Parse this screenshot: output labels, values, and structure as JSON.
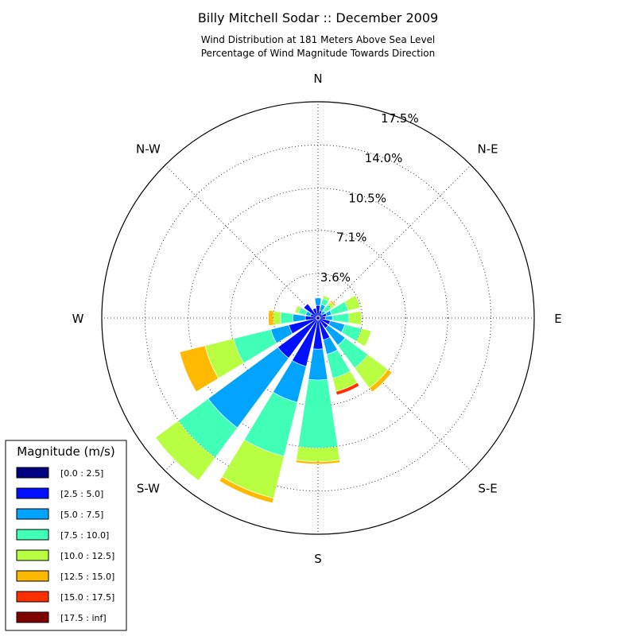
{
  "chart_data": {
    "type": "windrose",
    "title": "Billy Mitchell Sodar :: December 2009",
    "subtitle_lines": [
      "Wind Distribution at 181 Meters Above Sea Level",
      "Percentage of Wind Magnitude Towards Direction"
    ],
    "direction_labels": [
      "N",
      "N-E",
      "E",
      "S-E",
      "S",
      "S-W",
      "W",
      "N-W"
    ],
    "ring_labels": [
      "3.6%",
      "7.1%",
      "10.5%",
      "14.0%",
      "17.5%"
    ],
    "rmax": 17.5,
    "legend": {
      "title": "Magnitude (m/s)",
      "bins": [
        {
          "label": "[0.0 : 2.5]",
          "color": "#000080"
        },
        {
          "label": "[2.5 : 5.0]",
          "color": "#0010ff"
        },
        {
          "label": "[5.0 : 7.5]",
          "color": "#00a4ff"
        },
        {
          "label": "[7.5 : 10.0]",
          "color": "#40ffb7"
        },
        {
          "label": "[10.0 : 12.5]",
          "color": "#b7ff40"
        },
        {
          "label": "[12.5 : 15.0]",
          "color": "#ffb900"
        },
        {
          "label": "[15.0 : 17.5]",
          "color": "#ff3000"
        },
        {
          "label": "[17.5 : inf]",
          "color": "#800000"
        }
      ]
    },
    "direction_bins_deg": [
      0,
      22.5,
      45,
      67.5,
      90,
      112.5,
      135,
      157.5,
      180,
      202.5,
      225,
      247.5,
      270,
      292.5,
      315,
      337.5
    ],
    "cumulative_percent": [
      [
        0.15,
        1.0,
        1.6,
        1.6,
        1.6,
        1.6,
        1.6,
        1.6
      ],
      [
        0.15,
        0.6,
        1.1,
        1.6,
        1.85,
        1.85,
        1.85,
        1.85
      ],
      [
        0.15,
        0.4,
        0.7,
        1.3,
        1.6,
        1.75,
        1.75,
        1.75
      ],
      [
        0.15,
        0.7,
        1.1,
        2.5,
        3.5,
        3.5,
        3.5,
        3.5
      ],
      [
        0.15,
        0.6,
        1.15,
        2.5,
        3.5,
        3.5,
        3.5,
        3.5
      ],
      [
        0.15,
        1.0,
        2.2,
        3.6,
        4.4,
        4.4,
        4.4,
        4.4
      ],
      [
        0.15,
        1.0,
        2.7,
        5.0,
        7.0,
        7.4,
        7.4,
        7.4
      ],
      [
        0.15,
        1.8,
        3.0,
        5.0,
        6.1,
        6.1,
        6.4,
        6.4
      ],
      [
        0.15,
        2.5,
        5.0,
        10.5,
        11.6,
        11.8,
        11.8,
        11.8
      ],
      [
        0.15,
        4.0,
        7.0,
        11.5,
        15.0,
        15.4,
        15.4,
        15.4
      ],
      [
        0.15,
        4.0,
        11.0,
        14.0,
        16.3,
        16.3,
        16.3,
        16.3
      ],
      [
        0.15,
        2.4,
        3.9,
        7.0,
        9.4,
        11.5,
        11.5,
        11.5
      ],
      [
        0.15,
        1.0,
        2.0,
        3.0,
        3.6,
        4.0,
        4.0,
        4.0
      ],
      [
        0.15,
        0.6,
        1.0,
        1.6,
        1.9,
        1.9,
        1.9,
        1.9
      ],
      [
        0.15,
        1.4,
        1.4,
        1.4,
        1.4,
        1.4,
        1.4,
        1.4
      ],
      [
        0.15,
        0.8,
        0.8,
        0.8,
        0.8,
        0.8,
        0.8,
        0.8
      ]
    ]
  }
}
